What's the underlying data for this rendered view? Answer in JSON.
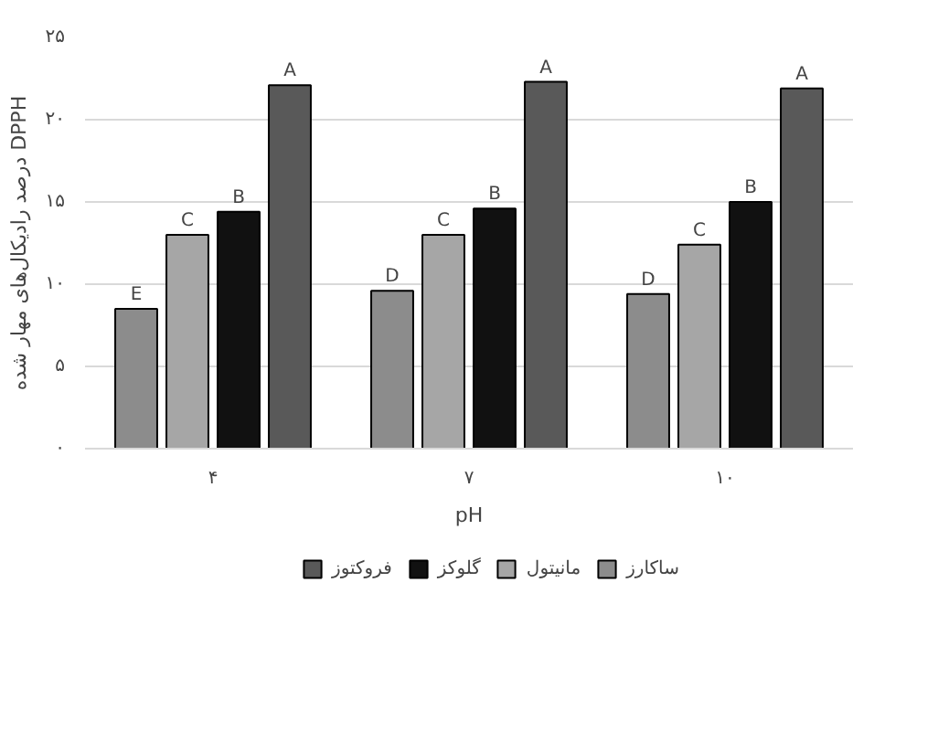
{
  "chart_data": {
    "type": "bar",
    "xlabel": "pH",
    "ylabel": "درصد رادیکال‌های مهار شده DPPH",
    "categories": [
      "۴",
      "۷",
      "۱۰"
    ],
    "series": [
      {
        "name": "ساکارز",
        "color": "#8c8c8c",
        "values": [
          8.5,
          9.6,
          9.4
        ]
      },
      {
        "name": "مانیتول",
        "color": "#a6a6a6",
        "values": [
          13.0,
          13.0,
          12.4
        ]
      },
      {
        "name": "گلوکز",
        "color": "#111111",
        "values": [
          14.4,
          14.6,
          15.0
        ]
      },
      {
        "name": "فروکتوز",
        "color": "#595959",
        "values": [
          22.1,
          22.3,
          21.9
        ]
      }
    ],
    "ylim": [
      0,
      25
    ],
    "yticks": [
      {
        "value": 0,
        "label": "۰"
      },
      {
        "value": 5,
        "label": "۵"
      },
      {
        "value": 10,
        "label": "۱۰"
      },
      {
        "value": 15,
        "label": "۱۵"
      },
      {
        "value": 20,
        "label": "۲۰"
      },
      {
        "value": 25,
        "label": "۲۵"
      }
    ],
    "grid": "y",
    "legend": "bottom",
    "annotations": [
      "E",
      "C",
      "B",
      "A",
      "D",
      "C",
      "B",
      "A",
      "D",
      "C",
      "B",
      "A"
    ]
  }
}
